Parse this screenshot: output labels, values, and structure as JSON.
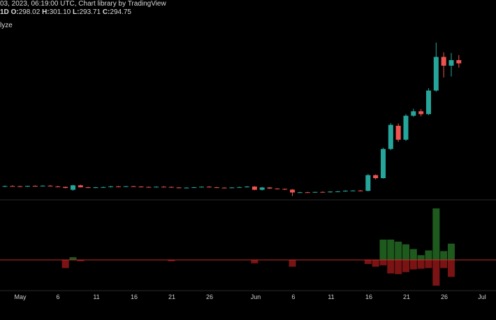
{
  "header": {
    "line1": "03, 2023, 06:19:00 UTC, Chart library by TradingView",
    "interval": "1D",
    "o_label": "O:",
    "o_value": "298.02",
    "h_label": "H:",
    "h_value": "301.10",
    "l_label": "L:",
    "l_value": "293.71",
    "c_label": "C:",
    "c_value": "294.75",
    "line3": "lyze"
  },
  "colors": {
    "background": "#000000",
    "up": "#26a69a",
    "down": "#ef5350",
    "vol_up": "#1e5a1e",
    "vol_down": "#7a1414",
    "baseline": "#c62828",
    "divider": "#2a2a2a"
  },
  "chart_data": [
    {
      "type": "candlestick",
      "ylim": [
        0,
        100
      ],
      "x_tick_labels": [
        "May",
        "6",
        "11",
        "16",
        "21",
        "26",
        "Jun",
        "6",
        "11",
        "16",
        "21",
        "26",
        "Jul"
      ],
      "candles": [
        {
          "o": 3.6,
          "h": 4.1,
          "l": 3.2,
          "c": 3.8
        },
        {
          "o": 3.8,
          "h": 4.2,
          "l": 3.5,
          "c": 3.7
        },
        {
          "o": 3.7,
          "h": 4.0,
          "l": 3.3,
          "c": 3.6
        },
        {
          "o": 3.6,
          "h": 4.0,
          "l": 3.3,
          "c": 3.9
        },
        {
          "o": 3.9,
          "h": 4.2,
          "l": 3.5,
          "c": 3.7
        },
        {
          "o": 3.7,
          "h": 4.3,
          "l": 3.6,
          "c": 4.0
        },
        {
          "o": 4.0,
          "h": 4.4,
          "l": 3.6,
          "c": 3.6
        },
        {
          "o": 3.6,
          "h": 3.9,
          "l": 3.1,
          "c": 3.3
        },
        {
          "o": 3.3,
          "h": 3.5,
          "l": 2.6,
          "c": 2.7
        },
        {
          "o": 1.7,
          "h": 4.5,
          "l": 1.2,
          "c": 4.2
        },
        {
          "o": 4.2,
          "h": 4.6,
          "l": 3.0,
          "c": 3.1
        },
        {
          "o": 3.1,
          "h": 3.4,
          "l": 2.7,
          "c": 3.0
        },
        {
          "o": 3.0,
          "h": 3.3,
          "l": 2.6,
          "c": 3.1
        },
        {
          "o": 3.1,
          "h": 3.5,
          "l": 2.8,
          "c": 3.2
        },
        {
          "o": 3.2,
          "h": 3.9,
          "l": 3.0,
          "c": 3.6
        },
        {
          "o": 3.6,
          "h": 3.9,
          "l": 3.3,
          "c": 3.4
        },
        {
          "o": 3.4,
          "h": 3.8,
          "l": 3.2,
          "c": 3.7
        },
        {
          "o": 3.7,
          "h": 3.9,
          "l": 3.3,
          "c": 3.5
        },
        {
          "o": 3.5,
          "h": 3.7,
          "l": 3.1,
          "c": 3.3
        },
        {
          "o": 3.3,
          "h": 3.5,
          "l": 3.1,
          "c": 3.2
        },
        {
          "o": 3.2,
          "h": 3.6,
          "l": 3.0,
          "c": 3.4
        },
        {
          "o": 3.4,
          "h": 3.7,
          "l": 3.2,
          "c": 3.3
        },
        {
          "o": 3.3,
          "h": 3.5,
          "l": 2.9,
          "c": 3.0
        },
        {
          "o": 3.0,
          "h": 3.2,
          "l": 2.6,
          "c": 2.8
        },
        {
          "o": 2.8,
          "h": 3.1,
          "l": 2.5,
          "c": 2.9
        },
        {
          "o": 2.9,
          "h": 3.3,
          "l": 2.7,
          "c": 3.1
        },
        {
          "o": 3.1,
          "h": 3.6,
          "l": 2.9,
          "c": 3.4
        },
        {
          "o": 3.4,
          "h": 3.7,
          "l": 3.0,
          "c": 3.1
        },
        {
          "o": 3.1,
          "h": 3.3,
          "l": 2.7,
          "c": 2.9
        },
        {
          "o": 2.9,
          "h": 3.1,
          "l": 2.6,
          "c": 2.8
        },
        {
          "o": 2.8,
          "h": 3.2,
          "l": 2.6,
          "c": 3.0
        },
        {
          "o": 3.0,
          "h": 3.4,
          "l": 2.8,
          "c": 3.2
        },
        {
          "o": 3.2,
          "h": 3.8,
          "l": 3.0,
          "c": 3.5
        },
        {
          "o": 3.5,
          "h": 3.7,
          "l": 1.5,
          "c": 1.7
        },
        {
          "o": 1.7,
          "h": 3.3,
          "l": 1.3,
          "c": 3.0
        },
        {
          "o": 3.0,
          "h": 3.2,
          "l": 2.2,
          "c": 2.4
        },
        {
          "o": 2.4,
          "h": 2.6,
          "l": 2.0,
          "c": 2.2
        },
        {
          "o": 2.2,
          "h": 2.4,
          "l": 1.6,
          "c": 1.8
        },
        {
          "o": 1.8,
          "h": 2.1,
          "l": -1.8,
          "c": 0.2
        },
        {
          "o": 0.2,
          "h": 0.6,
          "l": -0.1,
          "c": 0.3
        },
        {
          "o": 0.3,
          "h": 0.6,
          "l": 0.0,
          "c": 0.2
        },
        {
          "o": 0.2,
          "h": 0.6,
          "l": 0.0,
          "c": 0.5
        },
        {
          "o": 0.5,
          "h": 0.8,
          "l": 0.2,
          "c": 0.3
        },
        {
          "o": 0.3,
          "h": 0.9,
          "l": 0.1,
          "c": 0.7
        },
        {
          "o": 0.7,
          "h": 1.0,
          "l": 0.4,
          "c": 0.8
        },
        {
          "o": 0.8,
          "h": 1.4,
          "l": 0.6,
          "c": 1.2
        },
        {
          "o": 1.2,
          "h": 1.5,
          "l": 0.9,
          "c": 1.3
        },
        {
          "o": 1.3,
          "h": 1.6,
          "l": 0.9,
          "c": 1.1
        },
        {
          "o": 1.1,
          "h": 10.5,
          "l": 0.9,
          "c": 9.9
        },
        {
          "o": 9.9,
          "h": 10.3,
          "l": 7.5,
          "c": 8.2
        },
        {
          "o": 8.2,
          "h": 25.2,
          "l": 8.0,
          "c": 24.5
        },
        {
          "o": 24.5,
          "h": 39.0,
          "l": 23.9,
          "c": 38.0
        },
        {
          "o": 37.5,
          "h": 38.8,
          "l": 28.5,
          "c": 29.7
        },
        {
          "o": 29.7,
          "h": 44.0,
          "l": 29.0,
          "c": 43.1
        },
        {
          "o": 43.1,
          "h": 47.0,
          "l": 42.5,
          "c": 45.6
        },
        {
          "o": 45.6,
          "h": 46.8,
          "l": 42.8,
          "c": 44.0
        },
        {
          "o": 44.0,
          "h": 58.5,
          "l": 43.5,
          "c": 57.2
        },
        {
          "o": 57.2,
          "h": 84.0,
          "l": 56.5,
          "c": 76.0
        },
        {
          "o": 76.0,
          "h": 78.5,
          "l": 64.5,
          "c": 71.1
        },
        {
          "o": 71.1,
          "h": 78.2,
          "l": 65.0,
          "c": 74.2
        },
        {
          "o": 74.2,
          "h": 77.0,
          "l": 70.0,
          "c": 72.4
        }
      ]
    },
    {
      "type": "volume-histogram",
      "ylim": [
        -40,
        80
      ],
      "values": [
        0,
        0,
        0,
        0,
        0,
        0,
        0,
        0,
        -12,
        4,
        -2,
        0,
        0,
        0,
        0,
        0,
        0,
        0,
        0,
        0,
        0,
        0,
        -2,
        0,
        0,
        0,
        0,
        0,
        0,
        0,
        0,
        0,
        0,
        -5,
        0,
        0,
        0,
        0,
        -10,
        0,
        0,
        0,
        0,
        0,
        0,
        0,
        0,
        0,
        -6,
        -10,
        30,
        30,
        27,
        23,
        16,
        7,
        14,
        76,
        13,
        24
      ],
      "negative_overlay": [
        0,
        0,
        0,
        0,
        0,
        0,
        0,
        0,
        0,
        0,
        0,
        0,
        0,
        0,
        0,
        0,
        0,
        0,
        0,
        0,
        0,
        0,
        0,
        0,
        0,
        0,
        0,
        0,
        0,
        0,
        0,
        0,
        0,
        0,
        0,
        0,
        0,
        0,
        0,
        0,
        0,
        0,
        0,
        0,
        0,
        0,
        0,
        0,
        0,
        0,
        -8,
        -20,
        -21,
        -18,
        -14,
        -13,
        -12,
        -38,
        -12,
        -25
      ]
    }
  ]
}
